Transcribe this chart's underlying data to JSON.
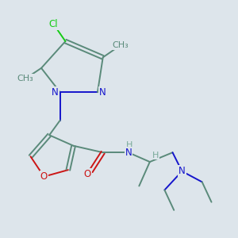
{
  "bg_color": "#dde5eb",
  "bond_color": "#5a8a7a",
  "bond_width": 1.4,
  "atom_colors": {
    "C": "#5a8a7a",
    "N": "#1515cc",
    "O": "#cc1515",
    "Cl": "#15cc15",
    "H": "#7aaa9a"
  },
  "font_size": 8.5,
  "title": ""
}
